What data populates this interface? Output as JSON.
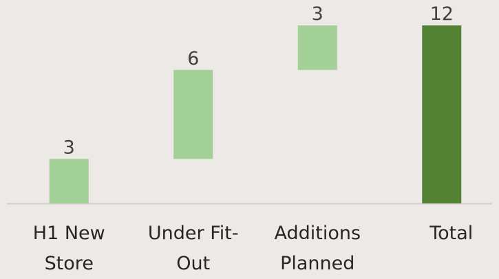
{
  "chart_data": {
    "type": "waterfall",
    "categories": [
      "H1 New Store",
      "Under Fit-Out",
      "Additions Planned",
      "Total"
    ],
    "values": [
      3,
      6,
      3,
      12
    ],
    "colors": [
      "#a2d096",
      "#a2d096",
      "#a2d096",
      "#548235"
    ],
    "total_last": true,
    "ylim": [
      0,
      12
    ]
  }
}
